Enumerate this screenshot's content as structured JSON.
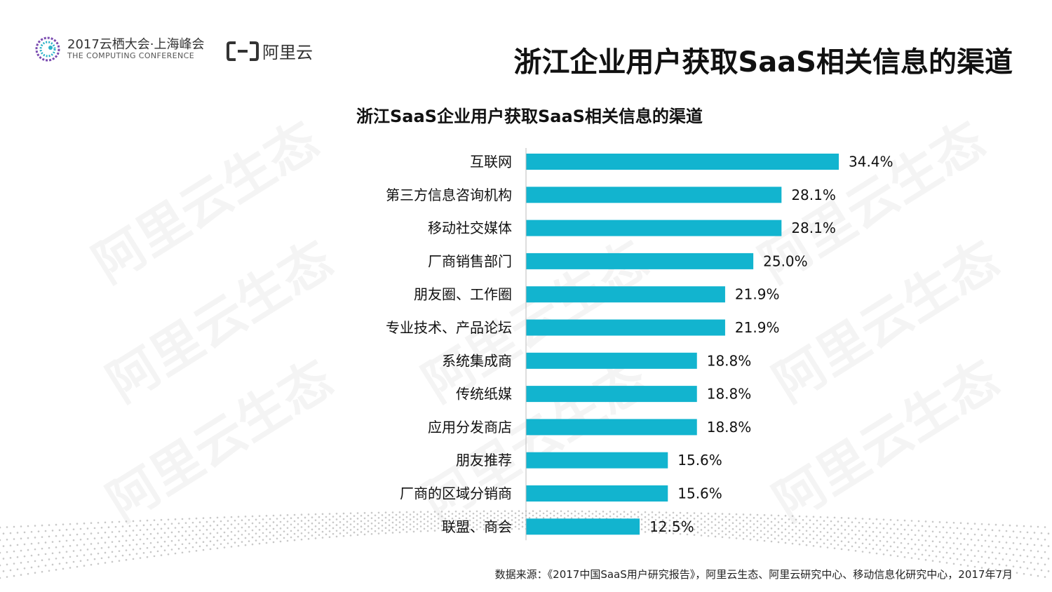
{
  "header": {
    "conference_title": "2017云栖大会·上海峰会",
    "conference_subtitle": "THE COMPUTING CONFERENCE",
    "brand_name": "阿里云"
  },
  "page_title": "浙江企业用户获取SaaS相关信息的渠道",
  "watermark_text": "阿里云生态",
  "source_note": "数据来源：《2017中国SaaS用户研究报告》，阿里云生态、阿里云研究中心、移动信息化研究中心，2017年7月",
  "colors": {
    "bar": "#12b4cf",
    "text": "#111111"
  },
  "chart_data": {
    "type": "bar",
    "orientation": "horizontal",
    "title": "浙江SaaS企业用户获取SaaS相关信息的渠道",
    "categories": [
      "互联网",
      "第三方信息咨询机构",
      "移动社交媒体",
      "厂商销售部门",
      "朋友圈、工作圈",
      "专业技术、产品论坛",
      "系统集成商",
      "传统纸媒",
      "应用分发商店",
      "朋友推荐",
      "厂商的区域分销商",
      "联盟、商会"
    ],
    "values": [
      34.4,
      28.1,
      28.1,
      25.0,
      21.9,
      21.9,
      18.8,
      18.8,
      18.8,
      15.6,
      15.6,
      12.5
    ],
    "value_labels": [
      "34.4%",
      "28.1%",
      "28.1%",
      "25.0%",
      "21.9%",
      "21.9%",
      "18.8%",
      "18.8%",
      "18.8%",
      "15.6%",
      "15.6%",
      "12.5%"
    ],
    "xlabel": "",
    "ylabel": "",
    "xlim": [
      0,
      34.4
    ],
    "grid": false
  }
}
